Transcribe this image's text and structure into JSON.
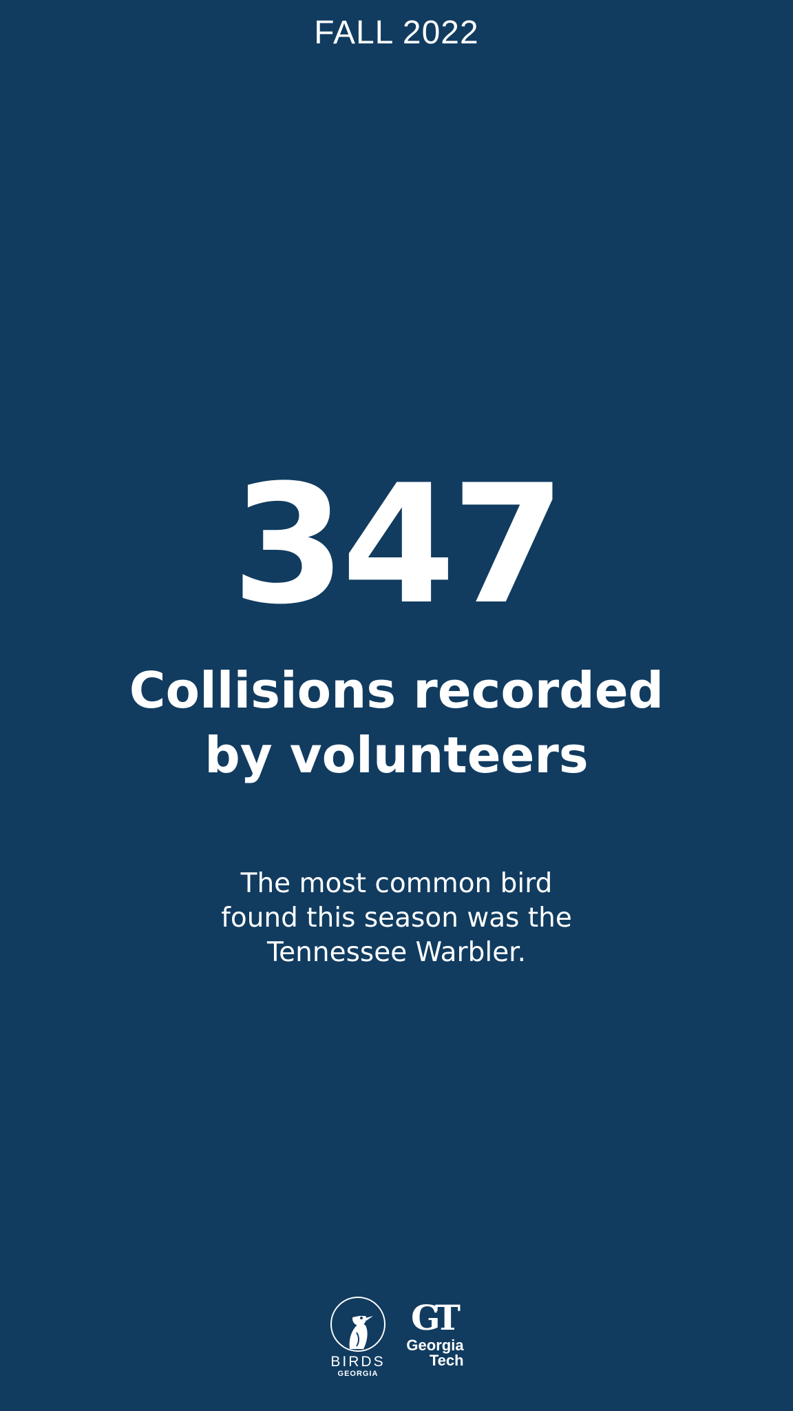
{
  "header": {
    "season": "FALL 2022"
  },
  "stat": {
    "value": "347",
    "headline_line1": "Collisions recorded",
    "headline_line2": "by volunteers"
  },
  "body": {
    "line1": "The most common bird",
    "line2": "found this season was the",
    "line3": "Tennessee Warbler."
  },
  "logos": {
    "birds_name": "BIRDS",
    "birds_region": "GEORGIA",
    "birds_icon": "bird-circle-icon",
    "gt_mark": "GT",
    "gt_name_line1": "Georgia",
    "gt_name_line2": "Tech"
  },
  "colors": {
    "background": "#113c60",
    "text": "#ffffff"
  }
}
